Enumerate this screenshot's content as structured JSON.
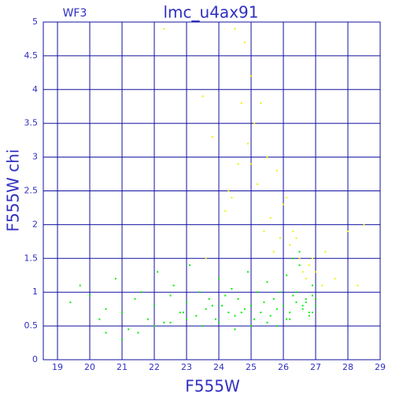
{
  "chart_data": {
    "type": "scatter",
    "title": "lmc_u4ax91",
    "annotation": "WF3",
    "x_label": "F555W",
    "y_label": "F555W chi",
    "xlim": [
      18.56,
      29
    ],
    "ylim": [
      0,
      5
    ],
    "xticks": [
      19,
      20,
      21,
      22,
      23,
      24,
      25,
      26,
      27,
      28,
      29
    ],
    "yticks": [
      0,
      0.5,
      1,
      1.5,
      2,
      2.5,
      3,
      3.5,
      4,
      4.5,
      5
    ],
    "grid": true,
    "grid_color": "#1010a0",
    "series": [
      {
        "color": "#00ee00",
        "x": [
          19.4,
          19.7,
          20.0,
          20.3,
          20.5,
          20.8,
          21.0,
          21.2,
          21.4,
          21.6,
          21.8,
          22.0,
          22.1,
          22.3,
          22.5,
          22.6,
          22.8,
          23.0,
          23.1,
          23.3,
          23.4,
          23.6,
          23.7,
          23.9,
          24.0,
          24.1,
          24.3,
          24.4,
          24.5,
          24.6,
          24.8,
          24.9,
          25.0,
          25.1,
          25.2,
          25.3,
          25.4,
          25.5,
          25.6,
          25.7,
          25.8,
          25.9,
          26.0,
          26.1,
          26.2,
          26.3,
          26.4,
          26.5,
          26.6,
          26.7,
          26.8,
          26.9,
          27.0,
          26.2,
          26.5,
          26.8,
          26.4,
          26.7,
          26.9,
          25.5,
          25.0,
          24.5,
          24.0,
          23.5,
          23.0,
          22.5,
          22.0,
          21.5,
          21.0,
          20.5,
          26.3,
          26.6,
          26.9,
          27.0,
          26.1,
          25.8,
          24.7,
          24.2,
          23.8,
          22.9
        ],
        "values": [
          0.85,
          1.1,
          0.95,
          0.6,
          0.75,
          1.2,
          0.7,
          0.45,
          0.9,
          1.0,
          0.6,
          0.8,
          1.3,
          0.55,
          0.95,
          1.1,
          0.7,
          0.85,
          1.4,
          0.65,
          1.0,
          0.75,
          0.9,
          0.6,
          1.2,
          0.8,
          0.7,
          1.05,
          0.65,
          0.9,
          0.75,
          1.3,
          0.8,
          0.6,
          1.0,
          0.7,
          0.85,
          1.15,
          0.65,
          0.9,
          0.75,
          1.0,
          0.8,
          1.25,
          0.7,
          0.95,
          0.85,
          1.4,
          0.75,
          0.9,
          0.65,
          1.1,
          0.8,
          0.6,
          1.6,
          0.7,
          1.0,
          0.85,
          0.95,
          0.55,
          0.5,
          0.45,
          0.55,
          0.5,
          0.6,
          0.55,
          0.5,
          0.4,
          0.3,
          0.4,
          1.5,
          0.8,
          0.7,
          0.9,
          0.6,
          0.5,
          0.7,
          0.95,
          0.8,
          0.7
        ]
      },
      {
        "color": "#f0f000",
        "x": [
          24.5,
          24.8,
          25.0,
          24.7,
          25.1,
          24.9,
          25.3,
          24.6,
          25.5,
          25.2,
          25.8,
          26.0,
          25.6,
          24.4,
          24.2,
          23.8,
          23.5,
          25.4,
          25.9,
          26.2,
          26.5,
          26.8,
          27.0,
          27.3,
          27.6,
          28.0,
          28.3,
          28.5,
          26.4,
          26.7,
          26.1,
          25.7,
          24.3,
          23.6,
          22.3,
          26.6,
          26.9,
          27.2,
          26.3,
          25.0
        ],
        "values": [
          4.9,
          4.7,
          4.2,
          3.8,
          3.5,
          3.2,
          3.8,
          2.9,
          3.0,
          2.6,
          2.8,
          2.3,
          2.1,
          2.4,
          2.2,
          3.3,
          3.9,
          1.9,
          1.8,
          1.7,
          1.5,
          1.4,
          1.3,
          1.6,
          1.2,
          1.9,
          1.1,
          2.0,
          1.8,
          1.2,
          2.4,
          1.6,
          2.5,
          1.5,
          4.9,
          1.3,
          1.5,
          1.1,
          1.9,
          2.9
        ]
      }
    ]
  }
}
